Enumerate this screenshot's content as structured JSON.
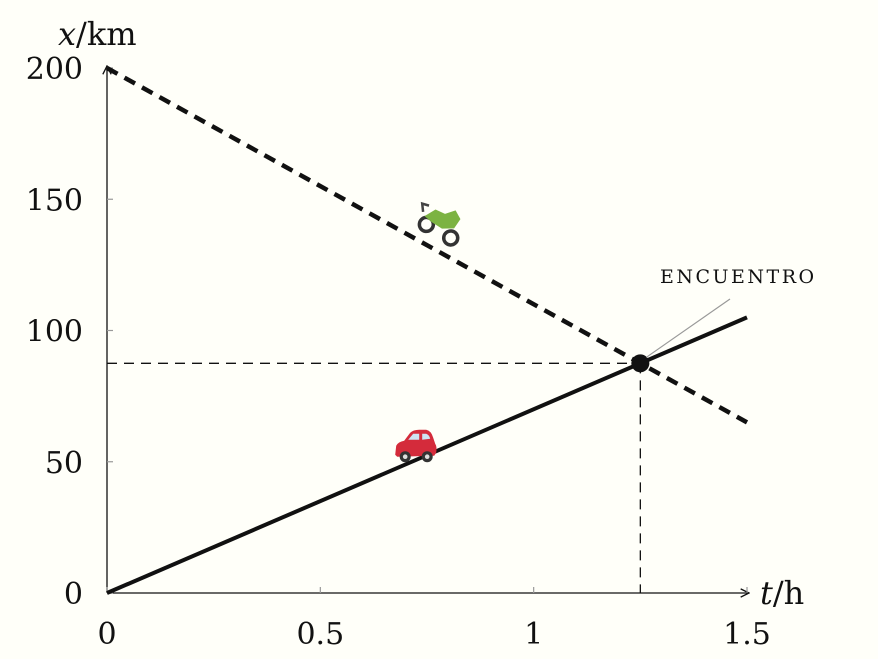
{
  "chart_data": {
    "type": "line",
    "xlabel": {
      "var": "t",
      "unit": "/h"
    },
    "ylabel": {
      "var": "x",
      "unit": "/km"
    },
    "xlim": [
      0,
      1.5
    ],
    "ylim": [
      0,
      200
    ],
    "x_ticks": [
      "0",
      "0.5",
      "1",
      "1.5"
    ],
    "x_tick_values": [
      0,
      0.5,
      1,
      1.5
    ],
    "y_ticks": [
      "0",
      "50",
      "100",
      "150",
      "200"
    ],
    "y_tick_values": [
      0,
      50,
      100,
      150,
      200
    ],
    "grid": false,
    "series": [
      {
        "style": "solid",
        "icon": "car-icon",
        "color": "#d42b3b",
        "x": [
          0,
          1.5
        ],
        "y": [
          0,
          105
        ]
      },
      {
        "style": "dashed",
        "icon": "motorcycle-icon",
        "color": "#7cb342",
        "x": [
          0,
          1.5
        ],
        "y": [
          200,
          65
        ]
      }
    ],
    "intersection": {
      "x": 1.25,
      "y": 87.5
    },
    "annotation": "ENCUENTRO"
  }
}
